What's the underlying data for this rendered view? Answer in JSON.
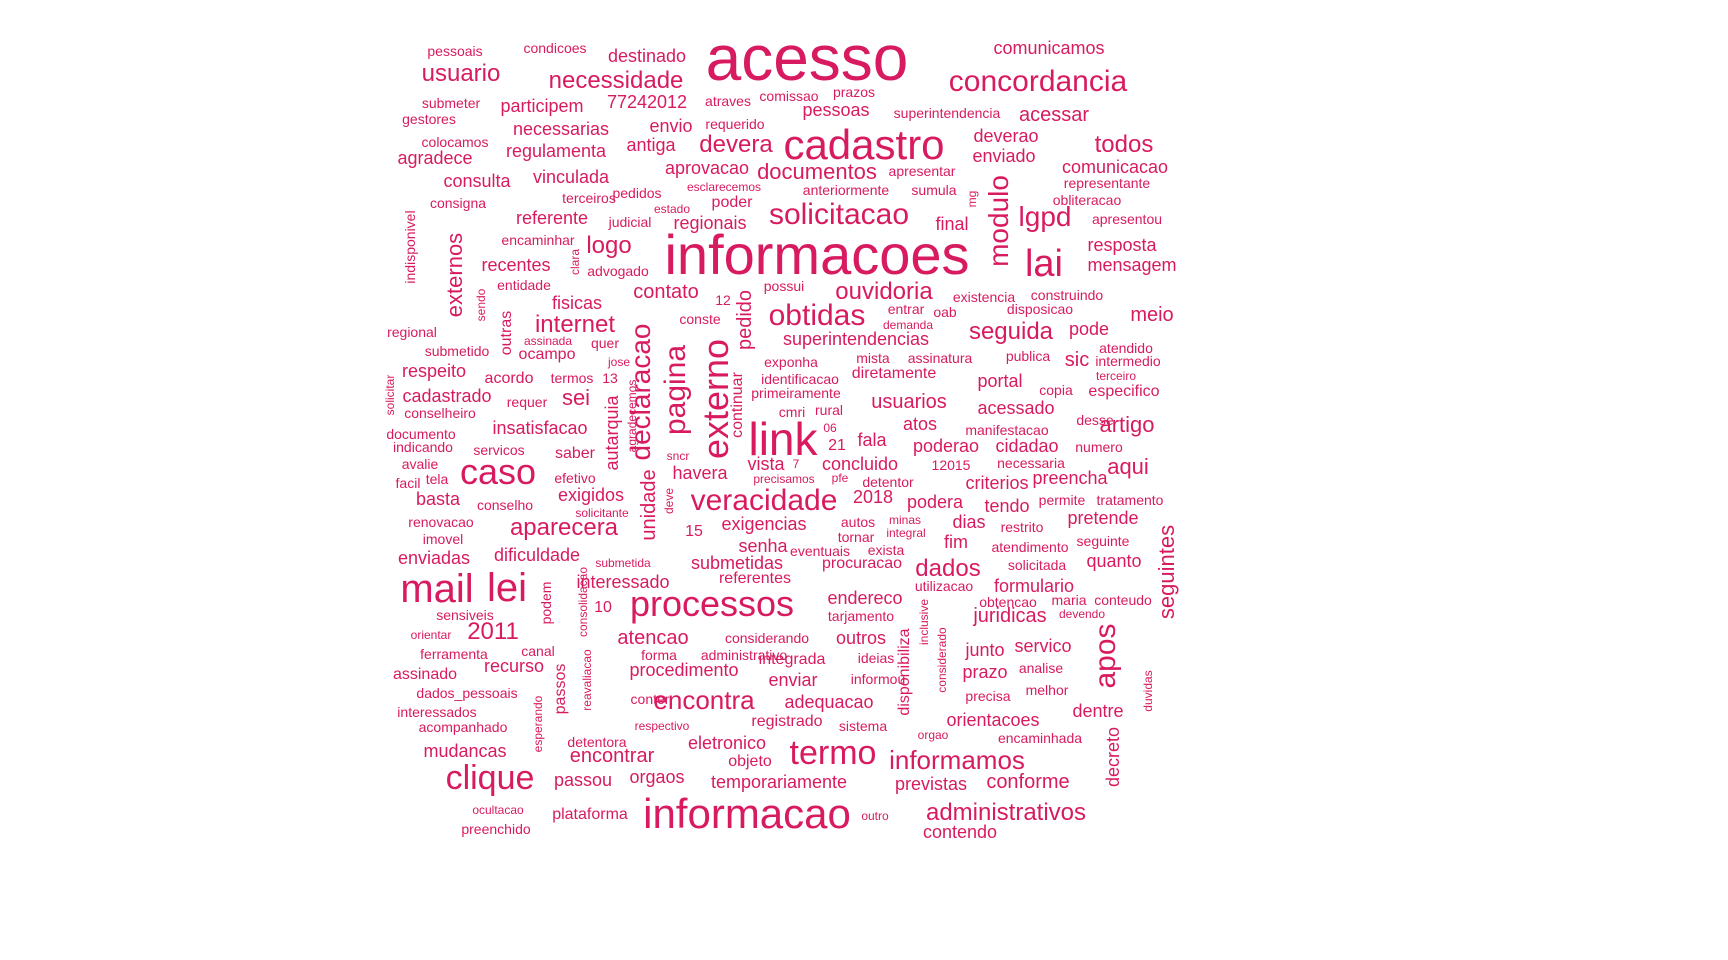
{
  "cloud": {
    "color": "#d81b60",
    "words": [
      {
        "text": "acesso"
      },
      {
        "text": "informacoes"
      },
      {
        "text": "cadastro"
      },
      {
        "text": "informacao"
      },
      {
        "text": "processos"
      },
      {
        "text": "mail"
      },
      {
        "text": "link"
      },
      {
        "text": "lei"
      },
      {
        "text": "concordancia"
      },
      {
        "text": "solicitacao"
      },
      {
        "text": "caso"
      },
      {
        "text": "clique"
      },
      {
        "text": "veracidade"
      },
      {
        "text": "lai"
      },
      {
        "text": "termo"
      },
      {
        "text": "obtidas"
      },
      {
        "text": "usuario"
      },
      {
        "text": "necessidade"
      },
      {
        "text": "externo"
      },
      {
        "text": "pagina"
      },
      {
        "text": "declaracao"
      },
      {
        "text": "informamos"
      },
      {
        "text": "administrativos"
      },
      {
        "text": "encontra"
      },
      {
        "text": "apos"
      },
      {
        "text": "aparecera"
      },
      {
        "text": "ouvidoria"
      },
      {
        "text": "todos"
      },
      {
        "text": "modulo"
      },
      {
        "text": "lgpd"
      },
      {
        "text": "devera"
      },
      {
        "text": "documentos"
      },
      {
        "text": "internet"
      },
      {
        "text": "seguida"
      },
      {
        "text": "dados"
      },
      {
        "text": "2011"
      },
      {
        "text": "externos"
      },
      {
        "text": "seguintes"
      },
      {
        "text": "aqui"
      },
      {
        "text": "sei"
      },
      {
        "text": "logo"
      },
      {
        "text": "contato"
      },
      {
        "text": "comunicamos"
      },
      {
        "text": "destinado"
      },
      {
        "text": "acessar"
      },
      {
        "text": "pessoas"
      },
      {
        "text": "participem"
      },
      {
        "text": "77242012"
      },
      {
        "text": "artigo"
      },
      {
        "text": "usuarios"
      },
      {
        "text": "juridicas"
      },
      {
        "text": "atencao"
      },
      {
        "text": "encontrar"
      },
      {
        "text": "temporariamente"
      },
      {
        "text": "previstas"
      },
      {
        "text": "conforme"
      },
      {
        "text": "plataforma"
      },
      {
        "text": "contendo"
      },
      {
        "text": "recurso"
      },
      {
        "text": "mudancas"
      },
      {
        "text": "eletronico"
      },
      {
        "text": "unidade"
      },
      {
        "text": "autarquia"
      },
      {
        "text": "pedido"
      },
      {
        "text": "continuar"
      },
      {
        "text": "disponibiliza"
      },
      {
        "text": "decreto"
      },
      {
        "text": "passos"
      },
      {
        "text": "podem"
      },
      {
        "text": "indisponivel"
      },
      {
        "text": "outras"
      },
      {
        "text": "vinculada"
      },
      {
        "text": "consulta"
      },
      {
        "text": "agradece"
      },
      {
        "text": "regulamenta"
      },
      {
        "text": "necessarias"
      },
      {
        "text": "envio"
      },
      {
        "text": "antiga"
      },
      {
        "text": "aprovacao"
      },
      {
        "text": "referente"
      },
      {
        "text": "regionais"
      },
      {
        "text": "poder"
      },
      {
        "text": "final"
      },
      {
        "text": "resposta"
      },
      {
        "text": "mensagem"
      },
      {
        "text": "recentes"
      },
      {
        "text": "fisicas"
      },
      {
        "text": "meio"
      },
      {
        "text": "pode"
      },
      {
        "text": "sic"
      },
      {
        "text": "superintendencias"
      },
      {
        "text": "ocampo"
      },
      {
        "text": "respeito"
      },
      {
        "text": "acordo"
      },
      {
        "text": "termos"
      },
      {
        "text": "cadastrado"
      },
      {
        "text": "insatisfacao"
      },
      {
        "text": "portal"
      },
      {
        "text": "acessado"
      },
      {
        "text": "manifestacao"
      },
      {
        "text": "poderao"
      },
      {
        "text": "cidadao"
      },
      {
        "text": "concluido"
      },
      {
        "text": "fala"
      },
      {
        "text": "atos"
      },
      {
        "text": "havera"
      },
      {
        "text": "vista"
      },
      {
        "text": "exigidos"
      },
      {
        "text": "2018"
      },
      {
        "text": "podera"
      },
      {
        "text": "tendo"
      },
      {
        "text": "criterios"
      },
      {
        "text": "preencha"
      },
      {
        "text": "exigencias"
      },
      {
        "text": "pretende"
      },
      {
        "text": "dias"
      },
      {
        "text": "fim"
      },
      {
        "text": "quanto"
      },
      {
        "text": "senha"
      },
      {
        "text": "submetidas"
      },
      {
        "text": "enviadas"
      },
      {
        "text": "dificuldade"
      },
      {
        "text": "referentes"
      },
      {
        "text": "interessado"
      },
      {
        "text": "endereco"
      },
      {
        "text": "formulario"
      },
      {
        "text": "outros"
      },
      {
        "text": "junto"
      },
      {
        "text": "servico"
      },
      {
        "text": "prazo"
      },
      {
        "text": "procedimento"
      },
      {
        "text": "integrada"
      },
      {
        "text": "enviar"
      },
      {
        "text": "adequacao"
      },
      {
        "text": "orientacoes"
      },
      {
        "text": "dentre"
      },
      {
        "text": "registrado"
      },
      {
        "text": "objeto"
      },
      {
        "text": "orgaos"
      },
      {
        "text": "passou"
      },
      {
        "text": "assinado"
      },
      {
        "text": "ferramenta"
      },
      {
        "text": "canal"
      },
      {
        "text": "orientar"
      },
      {
        "text": "10"
      },
      {
        "text": "15"
      },
      {
        "text": "21"
      },
      {
        "text": "enviado"
      },
      {
        "text": "deverao"
      },
      {
        "text": "comunicacao"
      },
      {
        "text": "especifico"
      },
      {
        "text": "desse"
      },
      {
        "text": "numero"
      },
      {
        "text": "pessoais"
      },
      {
        "text": "condicoes"
      },
      {
        "text": "submeter"
      },
      {
        "text": "gestores"
      },
      {
        "text": "colocamos"
      },
      {
        "text": "consigna"
      },
      {
        "text": "atraves"
      },
      {
        "text": "comissao"
      },
      {
        "text": "prazos"
      },
      {
        "text": "requerido"
      },
      {
        "text": "superintendencia"
      },
      {
        "text": "terceiros"
      },
      {
        "text": "pedidos"
      },
      {
        "text": "esclarecemos"
      },
      {
        "text": "anteriormente"
      },
      {
        "text": "apresentar"
      },
      {
        "text": "sumula"
      },
      {
        "text": "representante"
      },
      {
        "text": "obliteracao"
      },
      {
        "text": "apresentou"
      },
      {
        "text": "mg"
      },
      {
        "text": "judicial"
      },
      {
        "text": "estado"
      },
      {
        "text": "encaminhar"
      },
      {
        "text": "advogado"
      },
      {
        "text": "clara"
      },
      {
        "text": "entidade"
      },
      {
        "text": "sendo"
      },
      {
        "text": "possui"
      },
      {
        "text": "existencia"
      },
      {
        "text": "construindo"
      },
      {
        "text": "disposicao"
      },
      {
        "text": "12"
      },
      {
        "text": "entrar"
      },
      {
        "text": "oab"
      },
      {
        "text": "demanda"
      },
      {
        "text": "conste"
      },
      {
        "text": "regional"
      },
      {
        "text": "assinada"
      },
      {
        "text": "quer"
      },
      {
        "text": "submetido"
      },
      {
        "text": "jose"
      },
      {
        "text": "mista"
      },
      {
        "text": "assinatura"
      },
      {
        "text": "publica"
      },
      {
        "text": "atendido"
      },
      {
        "text": "intermedio"
      },
      {
        "text": "exponha"
      },
      {
        "text": "diretamente"
      },
      {
        "text": "identificacao"
      },
      {
        "text": "terceiro"
      },
      {
        "text": "copia"
      },
      {
        "text": "solicitar"
      },
      {
        "text": "13"
      },
      {
        "text": "requer"
      },
      {
        "text": "primeiramente"
      },
      {
        "text": "conselheiro"
      },
      {
        "text": "cmri"
      },
      {
        "text": "rural"
      },
      {
        "text": "agradecemos"
      },
      {
        "text": "documento"
      },
      {
        "text": "indicando"
      },
      {
        "text": "servicos"
      },
      {
        "text": "06"
      },
      {
        "text": "saber"
      },
      {
        "text": "sncr"
      },
      {
        "text": "avalie"
      },
      {
        "text": "7"
      },
      {
        "text": "12015"
      },
      {
        "text": "necessaria"
      },
      {
        "text": "facil"
      },
      {
        "text": "tela"
      },
      {
        "text": "efetivo"
      },
      {
        "text": "precisamos"
      },
      {
        "text": "pfe"
      },
      {
        "text": "detentor"
      },
      {
        "text": "basta"
      },
      {
        "text": "conselho"
      },
      {
        "text": "deve"
      },
      {
        "text": "permite"
      },
      {
        "text": "tratamento"
      },
      {
        "text": "solicitante"
      },
      {
        "text": "renovacao"
      },
      {
        "text": "autos"
      },
      {
        "text": "minas"
      },
      {
        "text": "restrito"
      },
      {
        "text": "imovel"
      },
      {
        "text": "tornar"
      },
      {
        "text": "integral"
      },
      {
        "text": "seguinte"
      },
      {
        "text": "eventuais"
      },
      {
        "text": "exista"
      },
      {
        "text": "atendimento"
      },
      {
        "text": "submetida"
      },
      {
        "text": "procuracao"
      },
      {
        "text": "solicitada"
      },
      {
        "text": "utilizacao"
      },
      {
        "text": "sensiveis"
      },
      {
        "text": "consolidacao"
      },
      {
        "text": "obtencao"
      },
      {
        "text": "maria"
      },
      {
        "text": "conteudo"
      },
      {
        "text": "tarjamento"
      },
      {
        "text": "devendo"
      },
      {
        "text": "considerando"
      },
      {
        "text": "inclusive"
      },
      {
        "text": "considerado"
      },
      {
        "text": "forma"
      },
      {
        "text": "administrativo"
      },
      {
        "text": "ideias"
      },
      {
        "text": "analise"
      },
      {
        "text": "duvidas"
      },
      {
        "text": "reavaliacao"
      },
      {
        "text": "dados_pessoais"
      },
      {
        "text": "conter"
      },
      {
        "text": "informou"
      },
      {
        "text": "precisa"
      },
      {
        "text": "melhor"
      },
      {
        "text": "esperando"
      },
      {
        "text": "interessados"
      },
      {
        "text": "acompanhado"
      },
      {
        "text": "respectivo"
      },
      {
        "text": "sistema"
      },
      {
        "text": "orgao"
      },
      {
        "text": "encaminhada"
      },
      {
        "text": "detentora"
      },
      {
        "text": "ocultacao"
      },
      {
        "text": "preenchido"
      },
      {
        "text": "outro"
      }
    ]
  }
}
